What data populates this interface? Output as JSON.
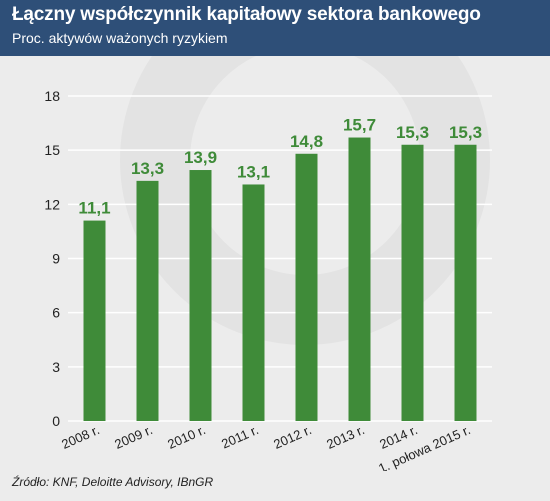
{
  "header": {
    "title": "Łączny współczynnik kapitałowy sektora bankowego",
    "subtitle": "Proc. aktywów ważonych ryzykiem"
  },
  "footer": {
    "source": "Źródło: KNF, Deloitte Advisory, IBnGR"
  },
  "colors": {
    "header_bg": "#2e4f78",
    "bar": "#3f8b39",
    "label": "#3f8b39",
    "background": "#ececec"
  },
  "chart_data": {
    "type": "bar",
    "categories": [
      "2008 r.",
      "2009 r.",
      "2010 r.",
      "2011 r.",
      "2012 r.",
      "2013 r.",
      "2014 r.",
      "1. połowa 2015 r."
    ],
    "values": [
      11.1,
      13.3,
      13.9,
      13.1,
      14.8,
      15.7,
      15.3,
      15.3
    ],
    "value_labels": [
      "11,1",
      "13,3",
      "13,9",
      "13,1",
      "14,8",
      "15,7",
      "15,3",
      "15,3"
    ],
    "ylim": [
      0,
      18
    ],
    "yticks": [
      0,
      3,
      6,
      9,
      12,
      15,
      18
    ],
    "grid": true,
    "title": "Łączny współczynnik kapitałowy sektora bankowego",
    "xlabel": "",
    "ylabel": ""
  }
}
